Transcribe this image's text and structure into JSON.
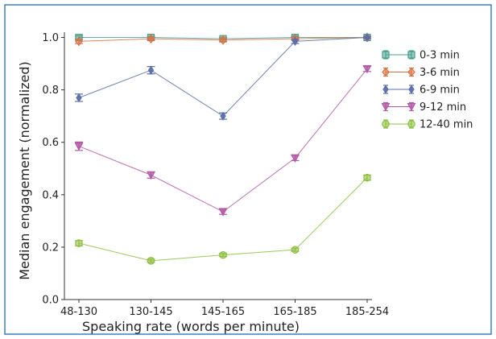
{
  "chart_data": {
    "type": "line",
    "xlabel": "Speaking rate (words per minute)",
    "ylabel": "Median engagement (normalized)",
    "categories": [
      "48-130",
      "130-145",
      "145-165",
      "165-185",
      "185-254"
    ],
    "ylim": [
      0.0,
      1.02
    ],
    "yticks": [
      "0.0",
      "0.2",
      "0.4",
      "0.6",
      "0.8",
      "1.0"
    ],
    "grid": false,
    "legend_position": "top-right",
    "series": [
      {
        "name": "0-3 min",
        "color": "#4a9e8e",
        "marker": "square",
        "values": [
          1.0,
          1.0,
          0.995,
          1.0,
          1.0
        ],
        "err": [
          0.006,
          0.004,
          0.004,
          0.005,
          0.004
        ]
      },
      {
        "name": "3-6 min",
        "color": "#d97346",
        "marker": "diamond",
        "values": [
          0.985,
          0.995,
          0.99,
          0.995,
          1.0
        ],
        "err": [
          0.008,
          0.005,
          0.006,
          0.006,
          0.004
        ]
      },
      {
        "name": "6-9 min",
        "color": "#5b6fa8",
        "marker": "diamond-small",
        "values": [
          0.77,
          0.875,
          0.7,
          0.985,
          1.0
        ],
        "err": [
          0.014,
          0.014,
          0.012,
          0.008,
          0.004
        ]
      },
      {
        "name": "9-12 min",
        "color": "#b35aa6",
        "marker": "triangle-down",
        "values": [
          0.585,
          0.475,
          0.335,
          0.54,
          0.88
        ],
        "err": [
          0.016,
          0.012,
          0.01,
          0.01,
          0.01
        ]
      },
      {
        "name": "12-40 min",
        "color": "#8dbf3f",
        "marker": "circle",
        "values": [
          0.215,
          0.148,
          0.17,
          0.19,
          0.465
        ],
        "err": [
          0.01,
          0.006,
          0.006,
          0.006,
          0.01
        ]
      }
    ]
  }
}
